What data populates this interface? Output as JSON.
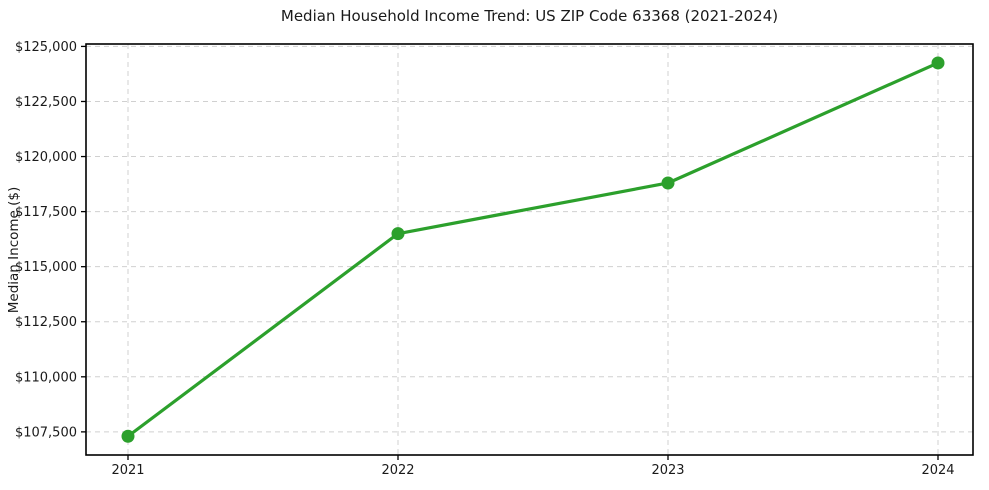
{
  "chart_data": {
    "type": "line",
    "title": "Median Household Income Trend: US ZIP Code 63368 (2021-2024)",
    "xlabel": "",
    "ylabel": "Median Income ($)",
    "categories": [
      "2021",
      "2022",
      "2023",
      "2024"
    ],
    "series": [
      {
        "name": "Median Household Income",
        "values": [
          107300,
          116500,
          118800,
          124250
        ]
      }
    ],
    "ylim": [
      106450,
      125110
    ],
    "y_ticks": [
      107500,
      110000,
      112500,
      115000,
      117500,
      120000,
      122500,
      125000
    ],
    "y_tick_labels": [
      "$107,500",
      "$110,000",
      "$112,500",
      "$115,000",
      "$117,500",
      "$120,000",
      "$122,500",
      "$125,000"
    ],
    "x_tick_labels": [
      "2021",
      "2022",
      "2023",
      "2024"
    ],
    "grid": true,
    "grid_style": "dashed",
    "legend": "none",
    "marker": "circle",
    "colors": {
      "line": "#2ca02c",
      "marker": "#2ca02c",
      "grid": "#d0d0d0",
      "spine": "#000000",
      "text": "#1a1a1a",
      "background": "#ffffff"
    }
  }
}
